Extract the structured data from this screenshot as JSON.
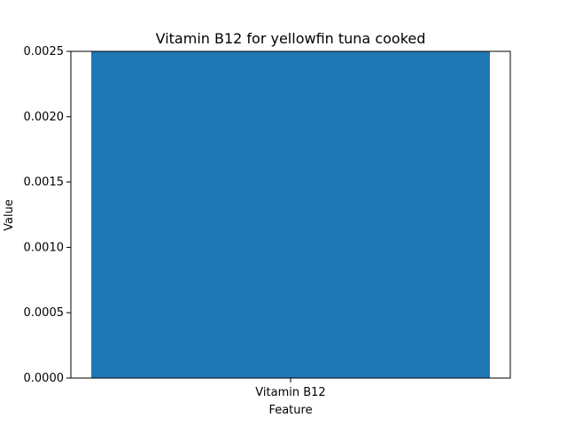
{
  "chart_data": {
    "type": "bar",
    "title": "Vitamin B12 for yellowfin tuna cooked",
    "xlabel": "Feature",
    "ylabel": "Value",
    "categories": [
      "Vitamin B12"
    ],
    "values": [
      0.0025
    ],
    "ylim": [
      0,
      0.0025
    ],
    "yticks": [
      0.0,
      0.0005,
      0.001,
      0.0015,
      0.002,
      0.0025
    ],
    "ytick_labels": [
      "0.0000",
      "0.0005",
      "0.0010",
      "0.0015",
      "0.0020",
      "0.0025"
    ],
    "bar_color": "#1f77b4",
    "grid": false,
    "legend": "none"
  }
}
